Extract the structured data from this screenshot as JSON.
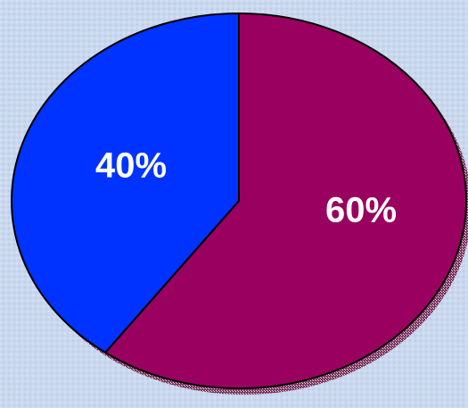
{
  "chart_data": {
    "type": "pie",
    "slices": [
      {
        "label": "60%",
        "value": 60,
        "color": "#990060"
      },
      {
        "label": "40%",
        "value": 40,
        "color": "#0033ff"
      }
    ]
  }
}
